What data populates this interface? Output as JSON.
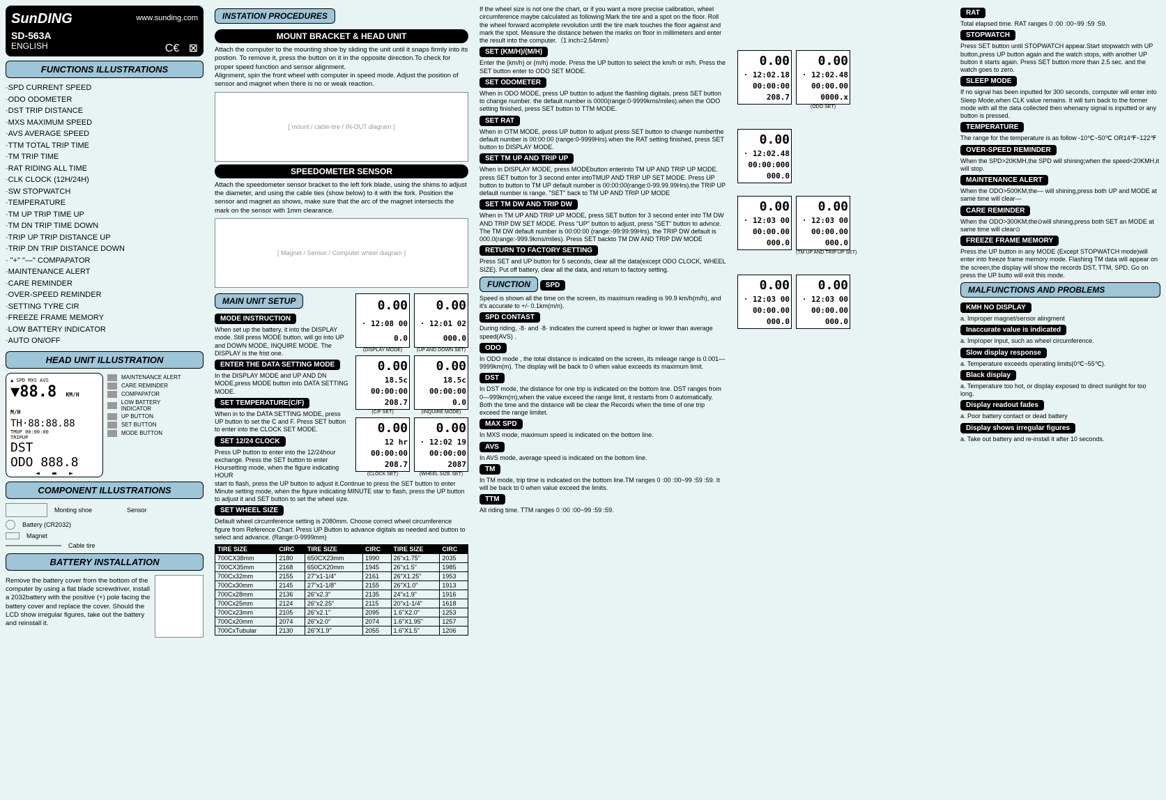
{
  "header": {
    "brand": "SunDING",
    "url": "www.sunding.com",
    "model": "SD-563A",
    "lang": "ENGLISH"
  },
  "sections": {
    "functions_title": "FUNCTIONS ILLUSTRATIONS",
    "functions_list": "·SPD  CURRENT SPEED\n·ODO  ODOMETER\n·DST  TRIP  DISTANCE\n·MXS  MAXIMUM  SPEED\n·AVS  AVERAGE  SPEED\n·TTM  TOTAL TRIP TIME\n·TM   TRIP  TIME\n·RAT  RIDING ALL TIME\n·CLK  CLOCK (12H/24H)\n·SW   STOPWATCH\n·TEMPERATURE\n·TM UP  TRIP  TIME UP\n·TM DN  TRIP  TIME DOWN\n·TRIP UP  TRIP DISTANCE UP\n·TRIP DN  TRIP DISTANCE DOWN\n· \"+\" \"—\" COMPAPATOR\n·MAINTENANCE ALERT\n·CARE REMINDER\n·OVER-SPEED REMINDER\n·SETTING TYRE  CIR\n·FREEZE FRAME MEMORY\n·LOW BATTERY INDICATOR\n·AUTO  ON/OFF",
    "head_unit_title": "HEAD UNIT ILLUSTRATION",
    "legend": [
      "MAINTENANCE ALERT",
      "CARE REMINDER",
      "COMPAPATOR",
      "LOW BATTERY INDICATOR",
      "UP BUTTON",
      "SET BUTTON",
      "MODE BUTTON"
    ],
    "component_title": "COMPONENT ILLUSTRATIONS",
    "components": [
      "Monting shoe",
      "Sensor",
      "Battery (CR2032)",
      "Magnet",
      "Cable tire"
    ],
    "battery_title": "BATTERY INSTALLATION",
    "battery_text": "Remove the battery cover from the bottom of the computer by using a flat blade screwdriver, install a 2032battery with the positive (+) pole facing the battery cover and replace the cover. Should the LCD show irregular figures, take out the battery and reinstall it."
  },
  "col2": {
    "instation_title": "INSTATION PROCEDURES",
    "mount_title": "MOUNT BRACKET & HEAD UNIT",
    "mount_text": "Attach the computer to the mounting shoe by sliding the unit until it snaps firmly into its postion. To remove it, press the button on it in the opposite direction.To check for proper speed function and sensor alignment.\nAlignment, spin the front wheel with computer in speed mode. Adjust the position of sensor and magnet when there is no or weak reaction.",
    "speedo_title": "SPEEDOMETER   SENSOR",
    "speedo_text": "Attach the speedometer sensor bracket to the left fork blade, using the shims to adjust the diameter, and using the cable ties (show below) to it with the fork. Position the sensor and magnet as shows, make sure that the arc of the magnet intersects the mark on the sensor with 1mm clearance.",
    "main_setup_title": "MAIN UNIT SETUP",
    "mode_instruction": "MODE INSTRUCTION",
    "mode_text": "When set up the battery, it into the DISPLAY mode. Still press MODE button, will go into UP and DOWN MODE, INQUIRE MODE. The DISPLAY is the frist one.",
    "enter_data": "ENTER THE DATA SETTING MODE",
    "enter_data_text": "In the DISPLAY MODE and UP AND DN MODE,press MODE button into DATA SETTING MODE.",
    "set_temp": "SET TEMPERATURE(C/F)",
    "set_temp_text": "When in to the DATA SETTING MODE, press UP button to set the C and F. Press SET button to enter into the CLOCK SET MODE.",
    "set_clock": "SET 12/24 CLOCK",
    "set_clock_text": "Press UP button to enter into the 12/24hour exchange. Press the SET button to enter Hoursetting mode, when the figure indicating HOUR start to flash, press the UP button to adjust it.Continue to press the SET button to enter Minute setting mode, when the figure indicating MINUTE star to flash, press the UP button to adjust it and SET button to set the wheel size.",
    "set_wheel": "SET WHEEL SIZE",
    "wheel_text": "Default wheel circumference setting is 2080mm. Choose correct wheel circumference figure from Reference Chart. Press UP Button to advance digitals as needed and button to select and advance. (Range:0-9999mm)",
    "tire_headers": [
      "TIRE SIZE",
      "CIRC",
      "TIRE SIZE",
      "CIRC",
      "TIRE SIZE",
      "CIRC"
    ],
    "tire_rows": [
      [
        "700CX38mm",
        "2180",
        "650CX23mm",
        "1990",
        "26\"x1.75\"",
        "2035"
      ],
      [
        "700CX35mm",
        "2168",
        "650CX20mm",
        "1945",
        "26\"x1.5\"",
        "1985"
      ],
      [
        "700Cx32mm",
        "2155",
        "27\"x1-1/4\"",
        "2161",
        "26\"X1.25\"",
        "1953"
      ],
      [
        "700Cx30mm",
        "2145",
        "27\"x1-1/8\"",
        "2155",
        "26\"X1.0\"",
        "1913"
      ],
      [
        "700Cx28mm",
        "2136",
        "26\"x2.3\"",
        "2135",
        "24\"x1.9\"",
        "1916"
      ],
      [
        "700Cx25mm",
        "2124",
        "26\"x2.25\"",
        "2115",
        "20\"x1-1/4\"",
        "1618"
      ],
      [
        "700Cx23mm",
        "2105",
        "26\"x2.1\"",
        "2095",
        "1.6\"X2.0\"",
        "1253"
      ],
      [
        "700Cx20mm",
        "2074",
        "26\"x2.0\"",
        "2074",
        "1.6\"X1.95\"",
        "1257"
      ],
      [
        "700CxTubular",
        "2130",
        "26\"X1.9\"",
        "2055",
        "1.6\"X1.5\"",
        "1206"
      ]
    ]
  },
  "col3": {
    "intro": "If the wheel size is not one the chart, or if you want a more precise calibration, wheel circumference maybe calculated as following:Mark the tire and a spot on the floor. Roll the wheel forward acomplete revolution until the tire mark touches the floor against and mark the spot. Measure the distance betwen the marks on floor in millimeters and enter the result into the computer.（1 inch=2.54mm）",
    "set_kmh": "SET (KM/H)/(M/H)",
    "set_kmh_text": "Enter the (km/h) or (m/h) mode. Press the UP button to select the km/h or m/h. Press the SET button enter to ODO SET MODE.",
    "set_odo": "SET ODOMETER",
    "set_odo_text": "When in ODO MODE, press UP button to adjust the flashling digitals, press SET button to change number. the default number is 0000(range:0-9999kms/miles).when the ODO setting finished, press SET button to TTM MODE.",
    "set_rat": "SET  RAT",
    "set_rat_text": "When in OTM MODE, press UP button to adjust press SET button to change numberthe default number is 00:00:00 (range:0-9999Hrs).when the RAT setting finished, press SET button to DISPLAY MODE.",
    "set_tmup": "SET TM UP AND TRIP UP",
    "set_tmup_text": "When in DISPLAY MODE, press MODEbutton enterinto TM UP AND TRIP UP MODE. press SET button for 3 second enter intoTMUP AND TRIP UP SET MODE. Press UP button to button to TM UP default number is 00:00:00(range:0-99.99.99Hrs).the TRIP UP default number is range. \"SET\" back to TM UP AND TRIP UP MODE",
    "set_tmdw": "SET TM DW AND TRIP DW",
    "set_tmdw_text": "When in TM UP AND TRIP UP MODE, press SET button for 3 second enter into TM DW AND TRIP DW SET MODE. Press \"UP\" button to adjust, press \"SET\" button to advnce. The TM DW default number is 00:00:00 (range:-99:99:99Hrs). the TRIP DW default is 000.0(range:-999.9kms/miles). Press SET backto TM DW AND TRIP DW MODE",
    "return_factory": "RETURN TO FACTORY SETTING",
    "return_text": "Press SET and UP button for 5 seconds, clear all the data(except ODO CLOCK, WHEEL SIZE). Put off battery, clear all the data, and return to factory setting.",
    "function_title": "FUNCTION",
    "spd": "SPD",
    "spd_text": "Speed is shown all the time on the screen, its maximum reading is 99.9 km/h(m/h), and it's accurate to +/- 0.1km(m/n).",
    "spd_contast": "SPD CONTAST",
    "spd_contast_text": "During riding,  ·8·  and  ·8·  indicates the current speed is higher or lower than average speed(AVS) .",
    "odo": "ODO",
    "odo_text": "In ODO mode , the total distance is indicated on the screen, its mileage range is 0.001—9999km(m). The display will be back to 0 when value exceeds its maximum limit.",
    "dst": "DST",
    "dst_text": "In DST mode, the distance for one trip is indicated on the bottom line. DST ranges from 0—999km(m),when the value exceed the range limit, it restarts from 0 automatically. Both the time and the distance will be clear the Records when the time of one trip exceed the range limitet.",
    "max_spd": "MAX SPD",
    "max_spd_text": "In MXS mode, maximum speed is indicated on the bottom line.",
    "avs": "AVS",
    "avs_text": "In AVS mode, average speed is indicated on the bottom line.",
    "tm": "TM",
    "tm_text": "In TM mode, trip time is indicated on the bottom line.TM ranges 0 :00 :00~99 :59 :59. It will be back to 0 when value exceed the limits.",
    "ttm": "TTM",
    "ttm_text": "All riding time. TTM ranges 0 :00 :00~99 :59 :59."
  },
  "col5": {
    "rat": "RAT",
    "rat_text": "Total elapsed time. RAT ranges 0 :00 :00~99 :59 :59.",
    "stopwatch": "STOPWATCH",
    "stopwatch_text": "Press SET button until STOPWATCH appear.Start stopwatch with UP button,press UP button again and the watch stops, with another UP button it starts again. Press SET button more than 2.5 sec. and the watch goes to zero.",
    "sleep": "SLEEP MODE",
    "sleep_text": "If no signal has been inputted for 300 seconds, computer will enter into Sleep Mode,when CLK value remains. It will turn back to the former mode with all the data collected then whenany signal is inputted or any button is pressed.",
    "temp": "TEMPERATURE",
    "temp_text": "The range for the temperature is as follow -10℃~50℃ OR14℉~122℉",
    "overspeed": "OVER-SPEED REMINDER",
    "overspeed_text": "When the SPD>20KMH,the SPD will shining;when the speed<20KMH,it will stop.",
    "maint": "MAINTENANCE ALERT",
    "maint_text": "When the ODO>500KM,the— will shining,press both UP and MODE at same time will clear—",
    "care": "CARE REMINDER",
    "care_text": "When the ODO>300KM,the⊙will shining,press both SET an MODE at same time will clear⊙",
    "freeze": "FREEZE FRAME MEMORY",
    "freeze_text": "Press the UP button in any MODE (Except STOPWATCH mode)will enter into freeze frame memory mode. Flashing TM data will appear on the screen,the display will show the records DST, TTM, SPD. Go on press the UP butto will exit this mode.",
    "malfunctions_title": "MALFUNCTIONS AND PROBLEMS",
    "kmh_no": "KMH NO DISPLAY",
    "kmh_no_text": "a. Improper magnet/sensor alingment",
    "inaccurate": "Inaccurate value is indicated",
    "inaccurate_text": "a. Improper input, such as wheel circumference.",
    "slow": "Slow display response",
    "slow_text": "a. Temperature exceeds operating limits(0℃~55℃).",
    "black": "Black display",
    "black_text": "a. Temperature too hot, or display exposed to direct sunlight for too long.",
    "fades": "Display readout fades",
    "fades_text": "a. Poor battery contact or dead battery",
    "irregular": "Display shows irregular figures",
    "irregular_text": "a. Take out battery and re-install it after 10 seconds."
  },
  "lcd_labels": {
    "display_mode": "(DISPLAY MODE)",
    "up_down_set": "(UP AND DOWN SET)",
    "cf_set": "(C/F SET)",
    "inquire_mode": "(INQUIRE MODE)",
    "clock_set": "(CLOCK SET)",
    "wheel_size_set": "(WHEEL SIZE SET)",
    "odo_set": "(ODO SET)",
    "tm_trip_up_set": "(TM UP AND TRIP UP SET)"
  },
  "diagram_labels": {
    "computer": "Computer",
    "magnet": "Magnet",
    "sensor": "Sensor",
    "cable_tire": "Cable tire",
    "in": "IN",
    "out": "OUT"
  }
}
